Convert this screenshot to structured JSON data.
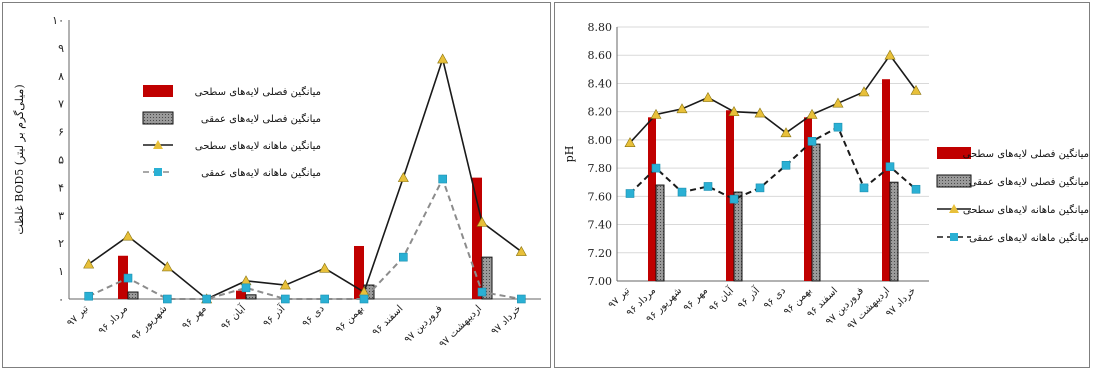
{
  "chart_data": [
    {
      "type": "bar",
      "ylabel": "غلظت BOD5 (میلی‌گرم بر لیتر)",
      "ylim": [
        0,
        10
      ],
      "yticks": [
        "۰",
        "۱",
        "۲",
        "۳",
        "۴",
        "۵",
        "۶",
        "۷",
        "۸",
        "۹",
        "۱۰"
      ],
      "categories": [
        "تیر ۹۷",
        "مرداد ۹۶",
        "شهریور ۹۶",
        "مهر ۹۶",
        "آبان ۹۶",
        "آذر ۹۶",
        "دی ۹۶",
        "بهمن ۹۶",
        "اسفند ۹۶",
        "فروردین ۹۷",
        "اردیبهشت ۹۷",
        "خرداد ۹۷"
      ],
      "grid": false,
      "legend_position": "upper-left",
      "series": [
        {
          "name": "میانگین فصلی لایه‌های سطحی",
          "kind": "bar",
          "color": "#c00000",
          "values": [
            null,
            1.55,
            null,
            null,
            0.3,
            null,
            null,
            1.9,
            null,
            null,
            4.35,
            null
          ]
        },
        {
          "name": "میانگین فصلی لایه‌های عمقی",
          "kind": "bar",
          "color": "#808080",
          "values": [
            null,
            0.25,
            null,
            null,
            0.15,
            null,
            null,
            0.5,
            null,
            null,
            1.5,
            null
          ]
        },
        {
          "name": "میانگین ماهانه لایه‌های سطحی",
          "kind": "line",
          "color": "#1a1a1a",
          "marker": "#e8c03a",
          "values": [
            1.25,
            2.25,
            1.15,
            0.0,
            0.65,
            0.5,
            1.1,
            0.25,
            4.35,
            8.6,
            2.75,
            1.7
          ]
        },
        {
          "name": "میانگین ماهانه لایه‌های عمقی",
          "kind": "line",
          "dashed": true,
          "color": "#8c8c8c",
          "marker": "#2ab0d4",
          "values": [
            0.1,
            0.75,
            0.0,
            0.0,
            0.4,
            0.0,
            0.0,
            0.0,
            1.5,
            4.3,
            0.25,
            0.0
          ]
        }
      ]
    },
    {
      "type": "bar",
      "ylabel": "pH",
      "ylim": [
        7.0,
        8.8
      ],
      "yticks": [
        "7.00",
        "7.20",
        "7.40",
        "7.60",
        "7.80",
        "8.00",
        "8.20",
        "8.40",
        "8.60",
        "8.80"
      ],
      "categories": [
        "تیر ۹۷",
        "مرداد ۹۶",
        "شهریور ۹۶",
        "مهر ۹۶",
        "آبان ۹۶",
        "آذر ۹۶",
        "دی ۹۶",
        "بهمن ۹۶",
        "اسفند ۹۶",
        "فروردین ۹۷",
        "اردیبهشت ۹۷",
        "خرداد ۹۷"
      ],
      "grid": true,
      "legend_position": "right",
      "series": [
        {
          "name": "میانگین فصلی لایه‌های سطحی",
          "kind": "bar",
          "color": "#c00000",
          "values": [
            null,
            8.16,
            null,
            null,
            8.21,
            null,
            null,
            8.16,
            null,
            null,
            8.43,
            null
          ]
        },
        {
          "name": "میانگین فصلی لایه‌های عمقی",
          "kind": "bar",
          "color": "#808080",
          "values": [
            null,
            7.68,
            null,
            null,
            7.63,
            null,
            null,
            7.97,
            null,
            null,
            7.7,
            null
          ]
        },
        {
          "name": "میانگین ماهانه لایه‌های سطحی",
          "kind": "line",
          "color": "#1a1a1a",
          "marker": "#e8c03a",
          "values": [
            7.98,
            8.18,
            8.22,
            8.3,
            8.2,
            8.19,
            8.05,
            8.18,
            8.26,
            8.34,
            8.6,
            8.35
          ]
        },
        {
          "name": "میانگین ماهانه لایه‌های عمقی",
          "kind": "line",
          "dashed": true,
          "color": "#1a1a1a",
          "marker": "#2ab0d4",
          "values": [
            7.62,
            7.8,
            7.63,
            7.67,
            7.58,
            7.66,
            7.82,
            7.99,
            8.09,
            7.66,
            7.81,
            7.65
          ]
        }
      ]
    }
  ]
}
